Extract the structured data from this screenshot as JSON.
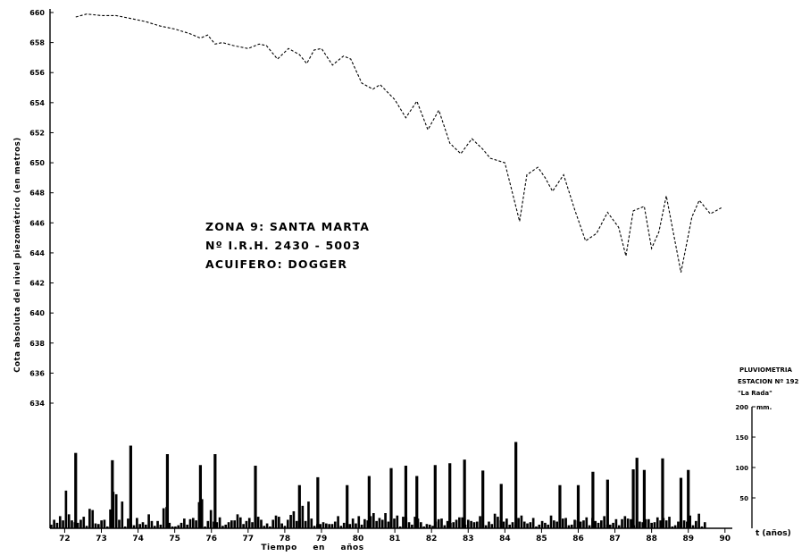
{
  "chart_data": {
    "type": "line",
    "title": "",
    "annotation": [
      "ZONA  9:  SANTA  MARTA",
      "Nº  I.R.H.  2430 - 5003",
      "ACUIFERO:  DOGGER"
    ],
    "xlabel": "Tiempo  en  años",
    "x_unit_label": "t (años)",
    "ylabel": "Cota absoluta del nivel piezométrico (en metros)",
    "x_ticks": [
      "72",
      "73",
      "74",
      "75",
      "76",
      "77",
      "78",
      "79",
      "80",
      "81",
      "82",
      "83",
      "84",
      "85",
      "86",
      "87",
      "88",
      "89",
      "90"
    ],
    "xlim": [
      1971.6,
      1990.2
    ],
    "y_ticks": [
      "660",
      "658",
      "656",
      "654",
      "652",
      "650",
      "648",
      "646",
      "644",
      "642",
      "640",
      "638",
      "636",
      "634"
    ],
    "ylim": [
      634,
      660
    ],
    "series": [
      {
        "style": "dashed",
        "x": [
          1972.3,
          1972.6,
          1973.0,
          1973.4,
          1973.8,
          1974.2,
          1974.6,
          1975.0,
          1975.4,
          1975.7,
          1975.9,
          1976.1,
          1976.3,
          1976.6,
          1977.0,
          1977.3,
          1977.5,
          1977.8,
          1978.1,
          1978.4,
          1978.6,
          1978.8,
          1979.0,
          1979.3,
          1979.6,
          1979.8,
          1980.1,
          1980.4,
          1980.6,
          1981.0,
          1981.3,
          1981.6,
          1981.9,
          1982.2,
          1982.5,
          1982.8,
          1983.1,
          1983.4,
          1983.6,
          1984.0,
          1984.4,
          1984.6,
          1984.9,
          1985.1,
          1985.3,
          1985.6,
          1985.9,
          1986.2,
          1986.5,
          1986.8,
          1987.1,
          1987.3,
          1987.5,
          1987.8,
          1988.0,
          1988.2,
          1988.4,
          1988.8,
          1989.1,
          1989.3,
          1989.6,
          1989.9
        ],
        "y": [
          659.7,
          659.9,
          659.8,
          659.8,
          659.6,
          659.4,
          659.1,
          658.9,
          658.6,
          658.3,
          658.5,
          657.9,
          658.0,
          657.8,
          657.6,
          657.9,
          657.8,
          656.9,
          657.6,
          657.2,
          656.6,
          657.5,
          657.6,
          656.5,
          657.1,
          656.9,
          655.3,
          654.9,
          655.2,
          654.2,
          653.0,
          654.1,
          652.2,
          653.5,
          651.3,
          650.6,
          651.6,
          650.9,
          650.3,
          650.0,
          646.1,
          649.2,
          649.7,
          649.0,
          648.1,
          649.2,
          646.9,
          644.8,
          645.3,
          646.7,
          645.7,
          643.8,
          646.8,
          647.1,
          644.3,
          645.4,
          647.8,
          642.7,
          646.4,
          647.5,
          646.6,
          647.0
        ],
        "display_y_scale": [
          1972.0,
          652.5,
          1988.0,
          642.2,
          1976.0,
          656.0
        ]
      }
    ],
    "secondary_chart": {
      "type": "bar",
      "title": [
        "PLUVIOMETRIA",
        "ESTACION Nº 192",
        "\"La Rada\""
      ],
      "unit": "mm.",
      "y_ticks": [
        "200",
        "150",
        "100",
        "50"
      ],
      "ylim": [
        0,
        200
      ],
      "bar_count": 218,
      "x_start": 1971.6,
      "x_end": 1989.5,
      "values": [
        6,
        14,
        9,
        20,
        13,
        62,
        23,
        13,
        10,
        9,
        14,
        19,
        4,
        32,
        30,
        8,
        7,
        13,
        14,
        3,
        31,
        60,
        56,
        14,
        44,
        3,
        16,
        7,
        5,
        17,
        7,
        10,
        6,
        23,
        12,
        4,
        12,
        6,
        33,
        35,
        9,
        3,
        3,
        5,
        9,
        16,
        6,
        15,
        17,
        13,
        43,
        48,
        3,
        12,
        30,
        11,
        10,
        18,
        4,
        6,
        10,
        13,
        13,
        23,
        18,
        7,
        12,
        17,
        10,
        21,
        19,
        14,
        4,
        8,
        3,
        14,
        21,
        19,
        8,
        4,
        14,
        22,
        28,
        12,
        16,
        37,
        12,
        44,
        16,
        4,
        7,
        7,
        10,
        8,
        7,
        7,
        11,
        20,
        4,
        9,
        12,
        7,
        16,
        8,
        20,
        6,
        15,
        13,
        20,
        25,
        12,
        17,
        14,
        25,
        11,
        12,
        16,
        21,
        3,
        19,
        18,
        10,
        6,
        19,
        16,
        10,
        3,
        7,
        6,
        4,
        11,
        15,
        16,
        5,
        12,
        9,
        10,
        14,
        18,
        18,
        6,
        14,
        12,
        10,
        11,
        20,
        6,
        5,
        11,
        7,
        24,
        19,
        13,
        11,
        16,
        6,
        10,
        6,
        17,
        21,
        11,
        8,
        10,
        17,
        3,
        6,
        12,
        9,
        6,
        21,
        13,
        11,
        11,
        16,
        17,
        5,
        6,
        14,
        13,
        11,
        13,
        18,
        5,
        17,
        12,
        9,
        13,
        20,
        6,
        6,
        9,
        15,
        5,
        15,
        20,
        16,
        15,
        5,
        13,
        11,
        10,
        15,
        15,
        9,
        10,
        18,
        13,
        17,
        13,
        19,
        3,
        5,
        11,
        4,
        13,
        11,
        21,
        5,
        12,
        24,
        3,
        10
      ],
      "peaks": [
        [
          1972.3,
          124
        ],
        [
          1973.3,
          112
        ],
        [
          1973.8,
          136
        ],
        [
          1974.8,
          122
        ],
        [
          1975.7,
          104
        ],
        [
          1976.1,
          122
        ],
        [
          1977.2,
          103
        ],
        [
          1978.4,
          71
        ],
        [
          1978.9,
          84
        ],
        [
          1979.7,
          71
        ],
        [
          1980.3,
          86
        ],
        [
          1980.9,
          99
        ],
        [
          1981.3,
          103
        ],
        [
          1981.6,
          86
        ],
        [
          1982.1,
          104
        ],
        [
          1982.5,
          107
        ],
        [
          1982.9,
          113
        ],
        [
          1983.4,
          95
        ],
        [
          1983.9,
          73
        ],
        [
          1984.3,
          142
        ],
        [
          1985.5,
          71
        ],
        [
          1986.0,
          71
        ],
        [
          1986.4,
          93
        ],
        [
          1986.8,
          80
        ],
        [
          1987.5,
          97
        ],
        [
          1987.6,
          116
        ],
        [
          1987.8,
          96
        ],
        [
          1988.3,
          115
        ],
        [
          1988.8,
          83
        ],
        [
          1989.0,
          96
        ]
      ]
    }
  }
}
